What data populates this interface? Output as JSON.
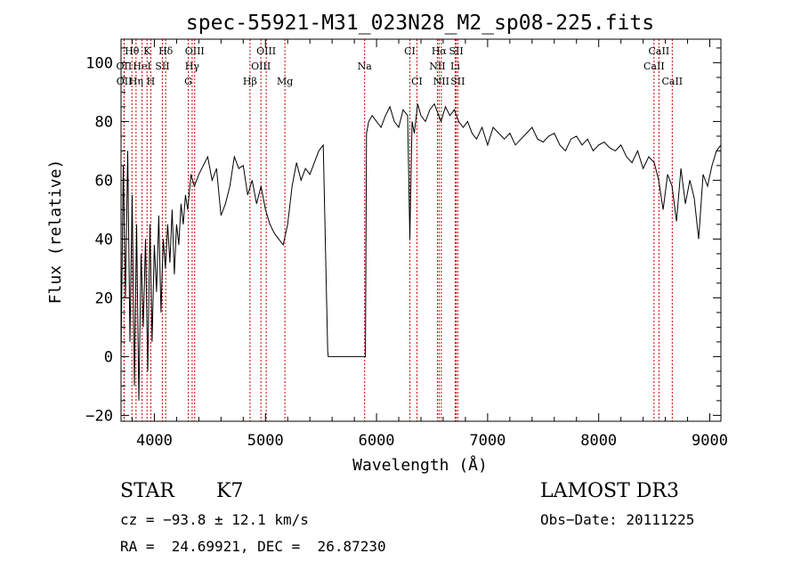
{
  "chart_data": {
    "type": "line",
    "title": "spec-55921-M31_023N28_M2_sp08-225.fits",
    "xlabel": "Wavelength (Å)",
    "ylabel": "Flux (relative)",
    "xlim": [
      3700,
      9100
    ],
    "ylim": [
      -22,
      108
    ],
    "xticks": [
      4000,
      5000,
      6000,
      7000,
      8000,
      9000
    ],
    "xtick_labels": [
      "4000",
      "5000",
      "6000",
      "7000",
      "8000",
      "9000"
    ],
    "yticks": [
      -20,
      0,
      20,
      40,
      60,
      80,
      100
    ],
    "ytick_labels": [
      "−20",
      "0",
      "20",
      "40",
      "60",
      "80",
      "100"
    ],
    "grid": false,
    "series": [
      {
        "name": "flux",
        "color": "#000000",
        "x": [
          3700,
          3720,
          3740,
          3760,
          3780,
          3800,
          3820,
          3840,
          3860,
          3880,
          3900,
          3920,
          3940,
          3960,
          3980,
          4000,
          4020,
          4040,
          4060,
          4080,
          4100,
          4120,
          4140,
          4160,
          4180,
          4200,
          4220,
          4240,
          4260,
          4280,
          4300,
          4330,
          4360,
          4400,
          4440,
          4480,
          4520,
          4560,
          4600,
          4640,
          4680,
          4720,
          4760,
          4800,
          4840,
          4880,
          4920,
          4960,
          5000,
          5040,
          5080,
          5120,
          5160,
          5200,
          5240,
          5280,
          5320,
          5360,
          5400,
          5440,
          5480,
          5520,
          5560,
          5565,
          5600,
          5700,
          5800,
          5900,
          5910,
          5930,
          5960,
          6000,
          6040,
          6080,
          6120,
          6160,
          6200,
          6240,
          6280,
          6300,
          6320,
          6340,
          6370,
          6400,
          6440,
          6480,
          6520,
          6560,
          6580,
          6620,
          6660,
          6700,
          6740,
          6780,
          6820,
          6860,
          6900,
          6950,
          7000,
          7050,
          7100,
          7150,
          7200,
          7250,
          7300,
          7350,
          7400,
          7450,
          7500,
          7550,
          7600,
          7650,
          7700,
          7750,
          7800,
          7850,
          7900,
          7950,
          8000,
          8050,
          8100,
          8150,
          8200,
          8250,
          8300,
          8350,
          8400,
          8450,
          8500,
          8540,
          8580,
          8620,
          8660,
          8700,
          8740,
          8780,
          8820,
          8860,
          8900,
          8940,
          8980,
          9020,
          9060,
          9100
        ],
        "y": [
          0,
          65,
          20,
          70,
          5,
          55,
          -10,
          45,
          -15,
          35,
          10,
          40,
          -5,
          45,
          5,
          38,
          22,
          48,
          15,
          40,
          30,
          45,
          32,
          50,
          28,
          45,
          38,
          52,
          45,
          55,
          50,
          62,
          58,
          62,
          65,
          68,
          60,
          64,
          48,
          52,
          58,
          68,
          64,
          65,
          55,
          60,
          52,
          58,
          50,
          45,
          42,
          40,
          38,
          45,
          58,
          66,
          60,
          64,
          62,
          66,
          70,
          72,
          2,
          0,
          0,
          0,
          0,
          0,
          76,
          80,
          82,
          80,
          78,
          82,
          85,
          80,
          78,
          84,
          82,
          40,
          80,
          76,
          86,
          82,
          80,
          84,
          86,
          82,
          80,
          85,
          82,
          84,
          80,
          78,
          80,
          76,
          74,
          78,
          72,
          78,
          76,
          74,
          76,
          72,
          74,
          76,
          78,
          74,
          73,
          75,
          76,
          72,
          70,
          74,
          75,
          72,
          74,
          70,
          72,
          73,
          71,
          70,
          72,
          68,
          66,
          70,
          64,
          68,
          66,
          60,
          50,
          62,
          58,
          46,
          64,
          52,
          60,
          54,
          40,
          62,
          58,
          65,
          70,
          72
        ]
      }
    ],
    "lines": [
      {
        "label": "Hθ",
        "x": 3798,
        "row": 1
      },
      {
        "label": "K",
        "x": 3934,
        "row": 1
      },
      {
        "label": "Hδ",
        "x": 4102,
        "row": 1
      },
      {
        "label": "OIII",
        "x": 4363,
        "row": 1
      },
      {
        "label": "OIII",
        "x": 5007,
        "row": 1
      },
      {
        "label": "CI",
        "x": 6300,
        "row": 1
      },
      {
        "label": "Hα",
        "x": 6563,
        "row": 1
      },
      {
        "label": "SII",
        "x": 6717,
        "row": 1
      },
      {
        "label": "CaII",
        "x": 8542,
        "row": 1
      },
      {
        "label": "OII",
        "x": 3727,
        "row": 2
      },
      {
        "label": "HeI",
        "x": 3889,
        "row": 2
      },
      {
        "label": "SII",
        "x": 4072,
        "row": 2
      },
      {
        "label": "Hγ",
        "x": 4340,
        "row": 2
      },
      {
        "label": "OIII",
        "x": 4959,
        "row": 2
      },
      {
        "label": "Na",
        "x": 5893,
        "row": 2
      },
      {
        "label": "NII",
        "x": 6548,
        "row": 2
      },
      {
        "label": "Li",
        "x": 6708,
        "row": 2
      },
      {
        "label": "CaII",
        "x": 8498,
        "row": 2
      },
      {
        "label": "OII",
        "x": 3729,
        "row": 3
      },
      {
        "label": "Hη",
        "x": 3835,
        "row": 3
      },
      {
        "label": "H",
        "x": 3968,
        "row": 3
      },
      {
        "label": "G",
        "x": 4305,
        "row": 3
      },
      {
        "label": "Hβ",
        "x": 4861,
        "row": 3
      },
      {
        "label": "Mg",
        "x": 5175,
        "row": 3
      },
      {
        "label": "CI",
        "x": 6364,
        "row": 3
      },
      {
        "label": "NII",
        "x": 6583,
        "row": 3
      },
      {
        "label": "SII",
        "x": 6731,
        "row": 3
      },
      {
        "label": "CaII",
        "x": 8662,
        "row": 3
      }
    ],
    "line_color": "#cc0000"
  },
  "info": {
    "object_class": "STAR",
    "subclass": "K7",
    "survey": "LAMOST DR3",
    "cz": "cz = −93.8 ± 12.1 km/s",
    "obs_date": "Obs−Date: 20111225",
    "coords": "RA =  24.69921, DEC =  26.87230"
  }
}
